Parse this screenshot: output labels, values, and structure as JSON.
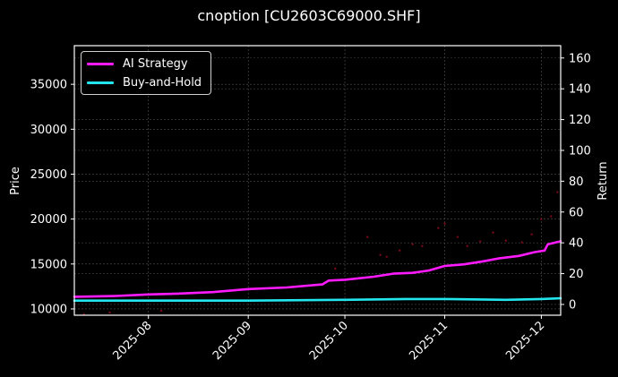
{
  "chart_data": {
    "type": "line",
    "title": "cnoption [CU2603C69000.SHF]",
    "xlabel": "",
    "ylabel_left": "Price",
    "ylabel_right": "Return",
    "x_ticks": [
      "2025-08",
      "2025-09",
      "2025-10",
      "2025-11",
      "2025-12"
    ],
    "y_left_ticks": [
      10000,
      15000,
      20000,
      25000,
      30000,
      35000
    ],
    "y_right_ticks": [
      0,
      20,
      40,
      60,
      80,
      100,
      120,
      140,
      160
    ],
    "y_left_range": [
      9300,
      39300
    ],
    "y_right_range": [
      -7,
      168
    ],
    "x_range": [
      "2025-07-09",
      "2025-12-07"
    ],
    "grid": true,
    "legend_position": "upper left",
    "series": [
      {
        "name": "AI Strategy",
        "axis": "right",
        "color": "#ff1aff",
        "x": [
          "2025-07-09",
          "2025-07-22",
          "2025-08-01",
          "2025-08-10",
          "2025-08-21",
          "2025-09-01",
          "2025-09-13",
          "2025-09-24",
          "2025-09-26",
          "2025-10-01",
          "2025-10-10",
          "2025-10-16",
          "2025-10-22",
          "2025-10-27",
          "2025-11-01",
          "2025-11-07",
          "2025-11-13",
          "2025-11-18",
          "2025-11-24",
          "2025-11-29",
          "2025-12-02",
          "2025-12-03",
          "2025-12-07"
        ],
        "values": [
          5,
          5.5,
          6.5,
          7,
          8,
          10,
          11,
          13,
          15.5,
          16,
          18,
          20,
          20.5,
          22,
          25,
          26,
          28,
          30,
          31.5,
          34,
          35,
          39,
          41
        ]
      },
      {
        "name": "Buy-and-Hold",
        "axis": "right",
        "color": "#22e5ee",
        "x": [
          "2025-07-09",
          "2025-08-01",
          "2025-09-01",
          "2025-10-01",
          "2025-10-20",
          "2025-11-01",
          "2025-11-20",
          "2025-12-01",
          "2025-12-07"
        ],
        "values": [
          2.5,
          2.5,
          2.5,
          3,
          3.5,
          3.5,
          3,
          3.5,
          4
        ]
      },
      {
        "name": "Price",
        "axis": "left",
        "type": "scatter",
        "color": "#7a0a1a",
        "x": [
          "2025-07-12",
          "2025-07-20",
          "2025-08-05",
          "2025-09-10",
          "2025-09-28",
          "2025-10-08",
          "2025-10-12",
          "2025-10-14",
          "2025-10-18",
          "2025-10-22",
          "2025-10-25",
          "2025-10-30",
          "2025-11-01",
          "2025-11-05",
          "2025-11-08",
          "2025-11-12",
          "2025-11-16",
          "2025-11-20",
          "2025-11-25",
          "2025-11-28",
          "2025-12-01",
          "2025-12-04",
          "2025-12-06"
        ],
        "values": [
          9400,
          9600,
          9800,
          11000,
          14500,
          18000,
          16000,
          15800,
          16500,
          17200,
          17000,
          19000,
          19500,
          18000,
          17000,
          17500,
          18500,
          17600,
          17400,
          18300,
          20000,
          20300,
          23000
        ]
      }
    ]
  },
  "legend": {
    "items": [
      {
        "label": "AI Strategy",
        "color": "#ff1aff"
      },
      {
        "label": "Buy-and-Hold",
        "color": "#22e5ee"
      }
    ]
  }
}
